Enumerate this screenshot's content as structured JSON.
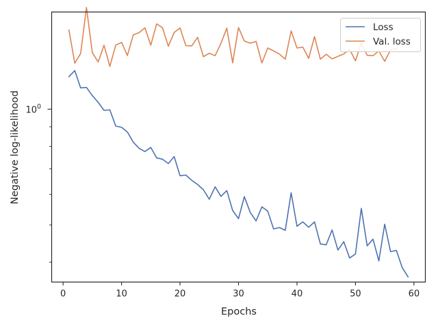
{
  "chart_data": {
    "type": "line",
    "xlabel": "Epochs",
    "ylabel": "Negative log-likelihood",
    "xlim": [
      -1.95,
      61.95
    ],
    "ylim": [
      0.355,
      1.79
    ],
    "yscale": "log",
    "x_ticks": [
      0,
      10,
      20,
      30,
      40,
      50,
      60
    ],
    "y_major_tick": {
      "value": 1.0,
      "label": "10",
      "exponent": "0"
    },
    "y_minor_ticks": [
      0.4,
      0.5,
      0.6,
      0.7,
      0.8,
      0.9,
      2.0
    ],
    "grid": false,
    "legend": {
      "position": "top-right",
      "entries": [
        "Loss",
        "Val. loss"
      ]
    },
    "colors": {
      "loss": "#4c72b0",
      "val_loss": "#dd8452",
      "axis": "#262626"
    },
    "x": [
      1,
      2,
      3,
      4,
      5,
      6,
      7,
      8,
      9,
      10,
      11,
      12,
      13,
      14,
      15,
      16,
      17,
      18,
      19,
      20,
      21,
      22,
      23,
      24,
      25,
      26,
      27,
      28,
      29,
      30,
      31,
      32,
      33,
      34,
      35,
      36,
      37,
      38,
      39,
      40,
      41,
      42,
      43,
      44,
      45,
      46,
      47,
      48,
      49,
      50,
      51,
      52,
      53,
      54,
      55,
      56,
      57,
      58,
      59
    ],
    "series": [
      {
        "name": "Loss",
        "values": [
          1.215,
          1.26,
          1.136,
          1.139,
          1.085,
          1.042,
          0.993,
          0.996,
          0.904,
          0.897,
          0.872,
          0.821,
          0.791,
          0.776,
          0.795,
          0.747,
          0.741,
          0.722,
          0.753,
          0.671,
          0.674,
          0.653,
          0.637,
          0.617,
          0.583,
          0.628,
          0.593,
          0.614,
          0.545,
          0.519,
          0.592,
          0.539,
          0.512,
          0.557,
          0.543,
          0.488,
          0.492,
          0.484,
          0.606,
          0.496,
          0.509,
          0.493,
          0.509,
          0.446,
          0.444,
          0.485,
          0.43,
          0.452,
          0.41,
          0.42,
          0.552,
          0.441,
          0.459,
          0.403,
          0.502,
          0.426,
          0.429,
          0.387,
          0.366
        ]
      },
      {
        "name": "Val. loss",
        "values": [
          1.608,
          1.317,
          1.396,
          1.839,
          1.404,
          1.327,
          1.467,
          1.292,
          1.468,
          1.492,
          1.379,
          1.561,
          1.582,
          1.628,
          1.467,
          1.667,
          1.629,
          1.458,
          1.583,
          1.627,
          1.463,
          1.461,
          1.538,
          1.37,
          1.398,
          1.378,
          1.484,
          1.625,
          1.32,
          1.631,
          1.504,
          1.485,
          1.501,
          1.319,
          1.443,
          1.418,
          1.391,
          1.349,
          1.598,
          1.443,
          1.45,
          1.356,
          1.544,
          1.349,
          1.39,
          1.352,
          1.372,
          1.392,
          1.432,
          1.336,
          1.489,
          1.381,
          1.378,
          1.418,
          1.332,
          1.426,
          1.436,
          1.528,
          1.518
        ]
      }
    ]
  }
}
